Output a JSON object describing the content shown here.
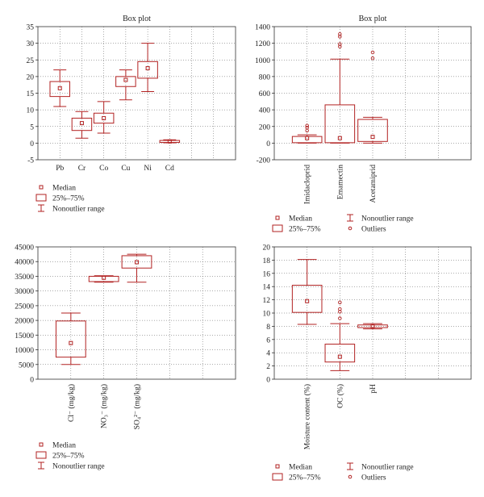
{
  "accent": "#b22222",
  "legend_labels": {
    "median": "Median",
    "iqr": "25%–75%",
    "range": "Nonoutlier range",
    "outliers": "Outliers"
  },
  "chart_data": [
    {
      "type": "box",
      "title": "Box plot",
      "ylim": [
        -5,
        35
      ],
      "yticks": [
        -5,
        0,
        5,
        10,
        15,
        20,
        25,
        30,
        35
      ],
      "categories": [
        "Pb",
        "Cr",
        "Co",
        "Cu",
        "Ni",
        "Cd"
      ],
      "label_orientation": "horizontal",
      "legend_layout": "stacked",
      "legend_items": [
        "median",
        "iqr",
        "range"
      ],
      "series": [
        {
          "name": "Pb",
          "min": 11,
          "q1": 14,
          "median": 16.5,
          "q3": 18.5,
          "max": 22,
          "outliers": []
        },
        {
          "name": "Cr",
          "min": 1.5,
          "q1": 3.8,
          "median": 6,
          "q3": 7.5,
          "max": 9.5,
          "outliers": []
        },
        {
          "name": "Co",
          "min": 3,
          "q1": 6,
          "median": 7.5,
          "q3": 9,
          "max": 12.5,
          "outliers": []
        },
        {
          "name": "Cu",
          "min": 13,
          "q1": 17,
          "median": 19,
          "q3": 20,
          "max": 22,
          "outliers": []
        },
        {
          "name": "Ni",
          "min": 15.5,
          "q1": 19.5,
          "median": 22.5,
          "q3": 24.5,
          "max": 30,
          "outliers": []
        },
        {
          "name": "Cd",
          "min": 0.1,
          "q1": 0.2,
          "median": 0.5,
          "q3": 0.8,
          "max": 1,
          "outliers": []
        }
      ]
    },
    {
      "type": "box",
      "title": "Box plot",
      "ylim": [
        -200,
        1400
      ],
      "yticks": [
        -200,
        0,
        200,
        400,
        600,
        800,
        1000,
        1200,
        1400
      ],
      "categories": [
        "Imidacloprid",
        "Emamectin",
        "Acetamiprid"
      ],
      "label_orientation": "vertical",
      "legend_layout": "grid",
      "legend_items": [
        "median",
        "range",
        "iqr",
        "outliers"
      ],
      "series": [
        {
          "name": "Imidacloprid",
          "min": 0,
          "q1": 5,
          "median": 60,
          "q3": 80,
          "max": 100,
          "outliers": [
            150,
            185,
            210
          ]
        },
        {
          "name": "Emamectin",
          "min": 0,
          "q1": 5,
          "median": 60,
          "q3": 460,
          "max": 1010,
          "outliers": [
            1160,
            1190,
            1280,
            1310
          ]
        },
        {
          "name": "Acetamiprid",
          "min": 0,
          "q1": 20,
          "median": 75,
          "q3": 285,
          "max": 310,
          "outliers": [
            1020,
            1090
          ]
        }
      ]
    },
    {
      "type": "box",
      "title": "",
      "ylim": [
        0,
        45000
      ],
      "yticks": [
        0,
        5000,
        10000,
        15000,
        20000,
        25000,
        30000,
        35000,
        40000,
        45000
      ],
      "categories": [
        "Cl⁻ (mg/kg)",
        "NO₃⁻ (mg/kg)",
        "SO₄²⁻ (mg/kg)"
      ],
      "label_orientation": "vertical",
      "legend_layout": "stacked",
      "legend_items": [
        "median",
        "iqr",
        "range"
      ],
      "series": [
        {
          "name": "Cl⁻ (mg/kg)",
          "min": 5000,
          "q1": 7500,
          "median": 12300,
          "q3": 19800,
          "max": 22500,
          "outliers": []
        },
        {
          "name": "NO₃⁻ (mg/kg)",
          "min": 33000,
          "q1": 33200,
          "median": 34500,
          "q3": 35000,
          "max": 35200,
          "outliers": []
        },
        {
          "name": "SO₄²⁻ (mg/kg)",
          "min": 33000,
          "q1": 37800,
          "median": 39800,
          "q3": 42000,
          "max": 42500,
          "outliers": []
        }
      ]
    },
    {
      "type": "box",
      "title": "",
      "ylim": [
        0,
        20
      ],
      "yticks": [
        0,
        2,
        4,
        6,
        8,
        10,
        12,
        14,
        16,
        18,
        20
      ],
      "categories": [
        "Moisture content (%)",
        "OC (%)",
        "pH"
      ],
      "label_orientation": "vertical",
      "legend_layout": "grid",
      "legend_items": [
        "median",
        "range",
        "iqr",
        "outliers"
      ],
      "series": [
        {
          "name": "Moisture content (%)",
          "min": 8.3,
          "q1": 10.1,
          "median": 11.8,
          "q3": 14.2,
          "max": 18.1,
          "outliers": []
        },
        {
          "name": "OC (%)",
          "min": 1.3,
          "q1": 2.6,
          "median": 3.4,
          "q3": 5.3,
          "max": 8.4,
          "outliers": [
            9.2,
            10.2,
            10.6,
            11.6
          ]
        },
        {
          "name": "pH",
          "min": 7.6,
          "q1": 7.8,
          "median": 8,
          "q3": 8.2,
          "max": 8.4,
          "outliers": []
        }
      ]
    }
  ]
}
